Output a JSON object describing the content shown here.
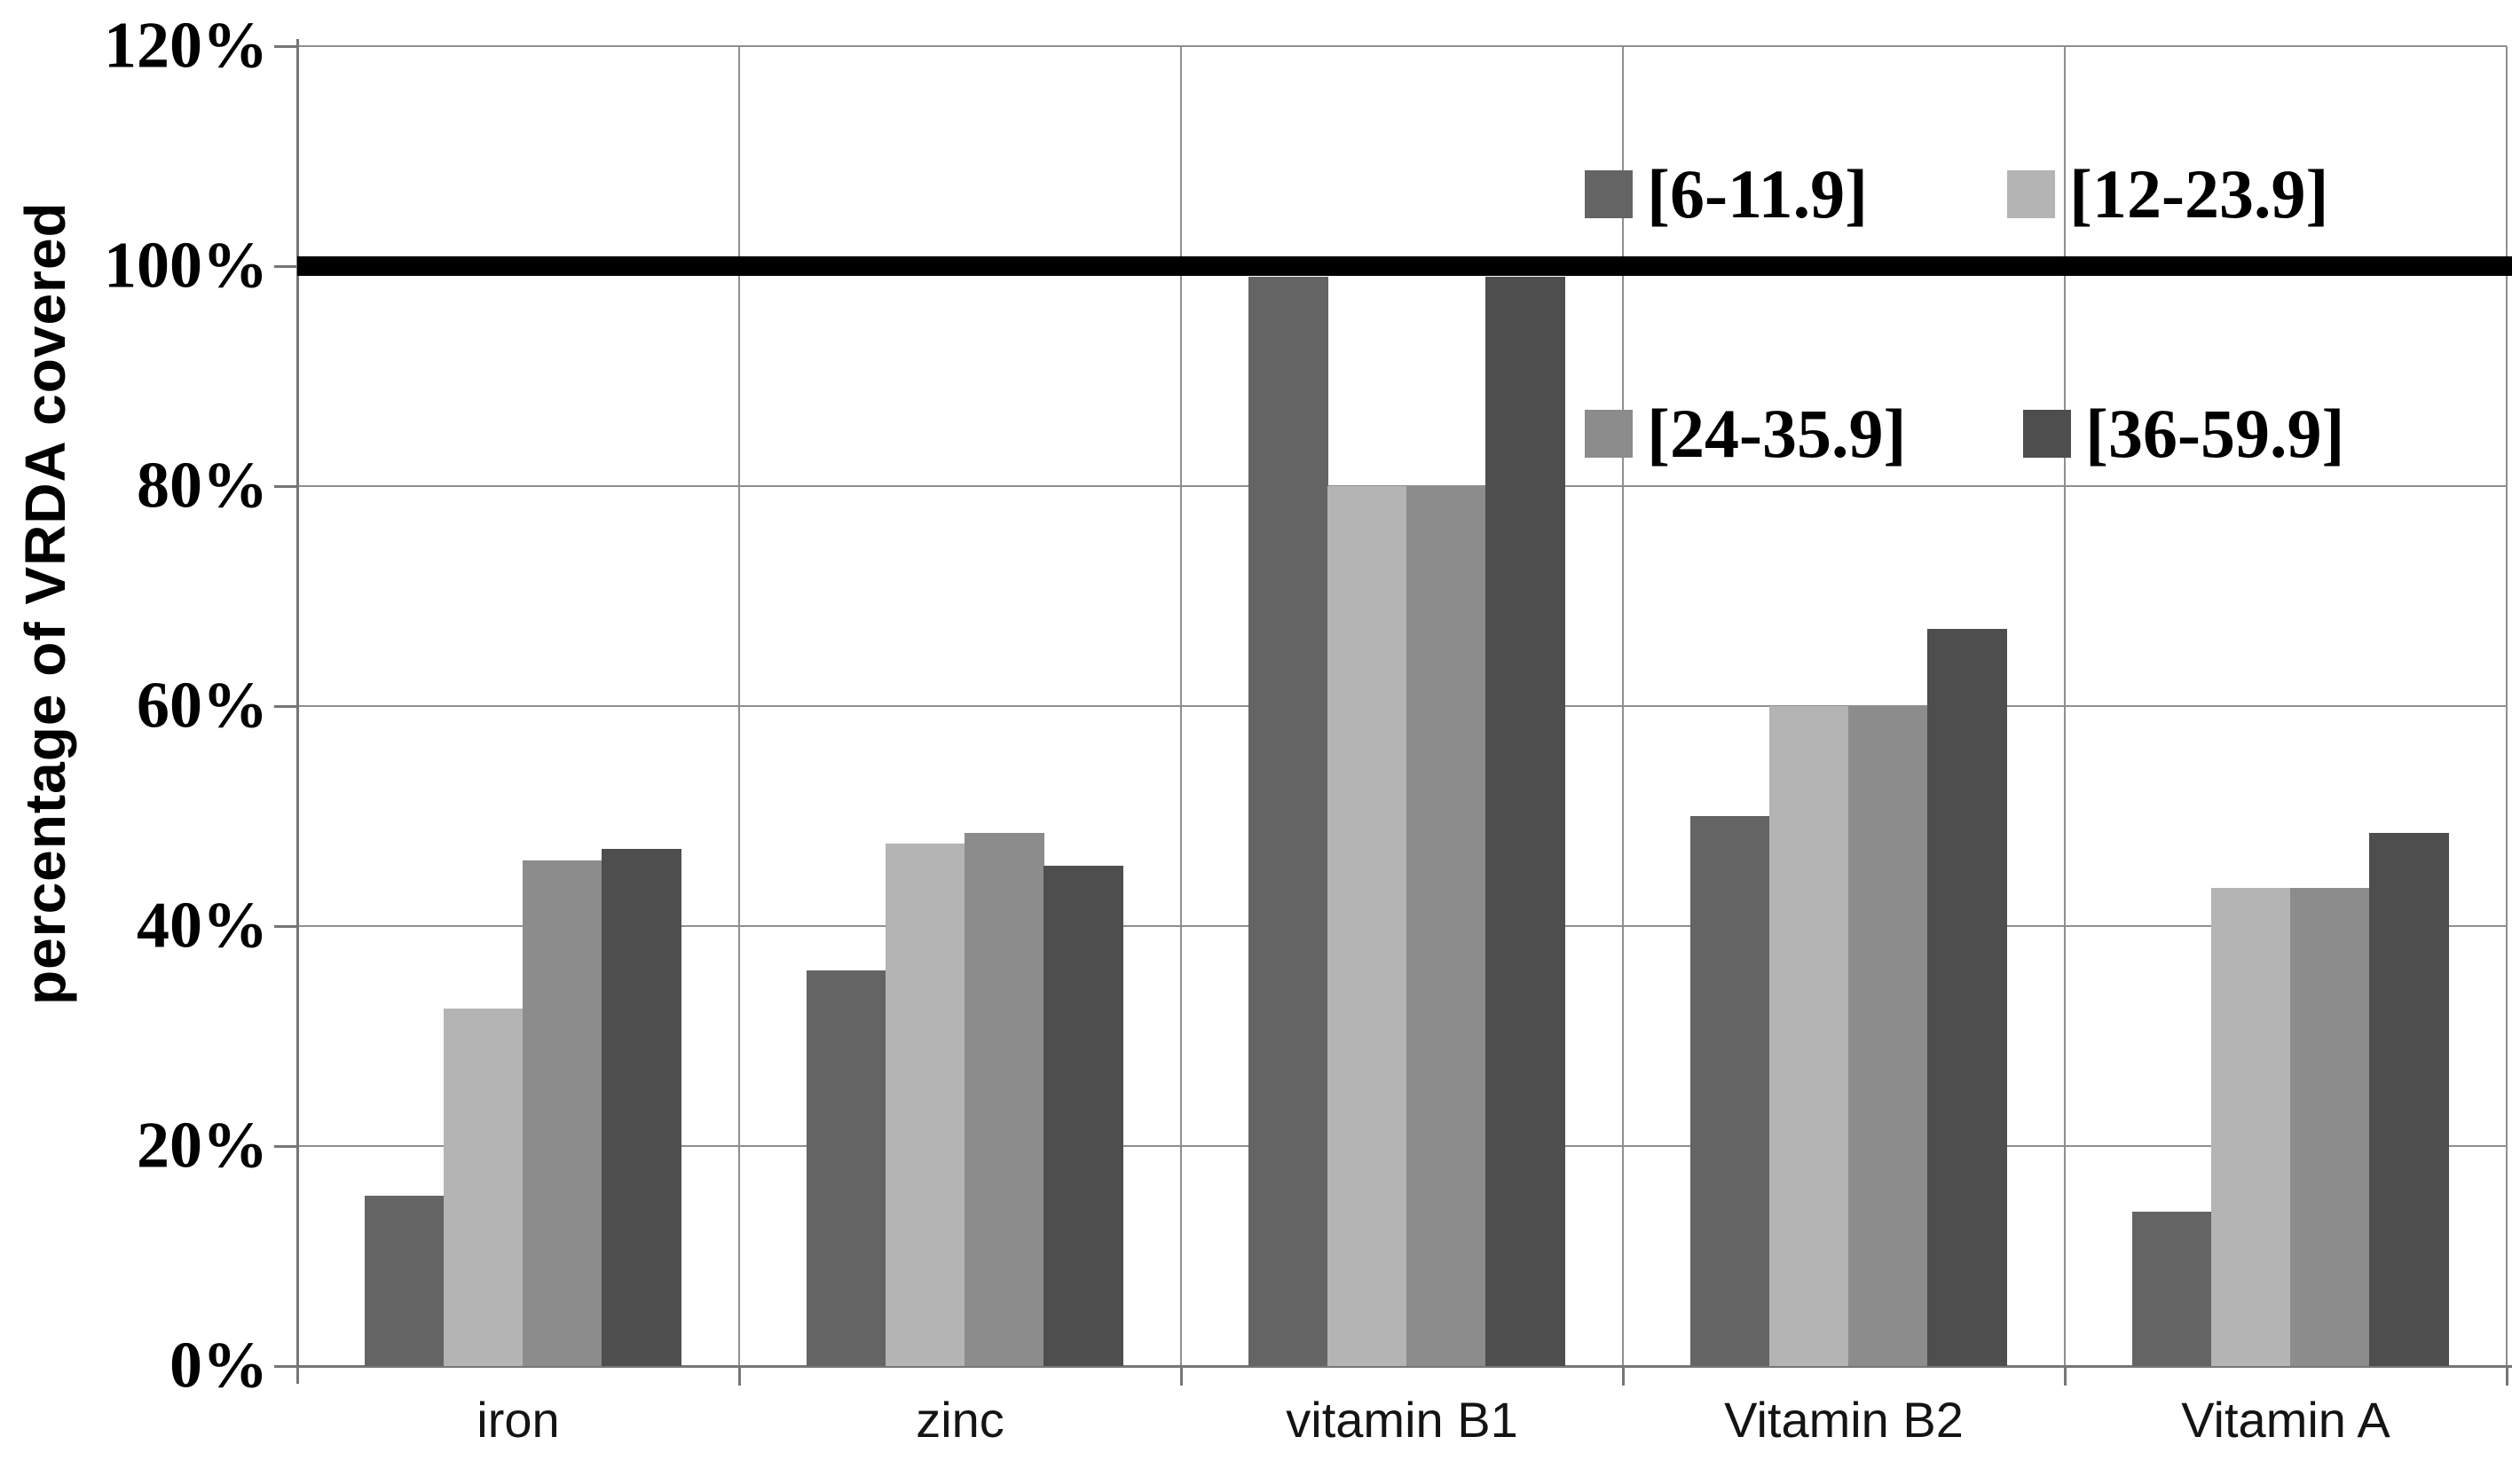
{
  "chart_data": {
    "type": "bar",
    "title": "",
    "xlabel": "",
    "ylabel": "percentage of VRDA covered",
    "categories": [
      "iron",
      "zinc",
      "vitamin B1",
      "Vitamin B2",
      "Vitamin A"
    ],
    "series": [
      {
        "name": "[6-11.9]",
        "color": "#646464",
        "values": [
          15.5,
          36,
          99,
          50,
          14
        ]
      },
      {
        "name": "[12-23.9]",
        "color": "#b4b4b4",
        "values": [
          32.5,
          47.5,
          80,
          60,
          43.5
        ]
      },
      {
        "name": "[24-35.9]",
        "color": "#8c8c8c",
        "values": [
          46,
          48.5,
          80,
          60,
          43.5
        ]
      },
      {
        "name": "[36-59.9]",
        "color": "#4e4e4e",
        "values": [
          47,
          45.5,
          99,
          67,
          48.5
        ]
      }
    ],
    "y_ticks": [
      "0%",
      "20%",
      "40%",
      "60%",
      "80%",
      "100%",
      "120%"
    ],
    "ylim": [
      0,
      120
    ],
    "y_tick_step": 20,
    "reference_line": {
      "value": 100,
      "color": "#000000"
    },
    "grid": true,
    "legend_position": "top-right",
    "legend_rows": [
      [
        "[6-11.9]",
        "[12-23.9]"
      ],
      [
        "[24-35.9]",
        "[36-59.9]"
      ]
    ]
  }
}
